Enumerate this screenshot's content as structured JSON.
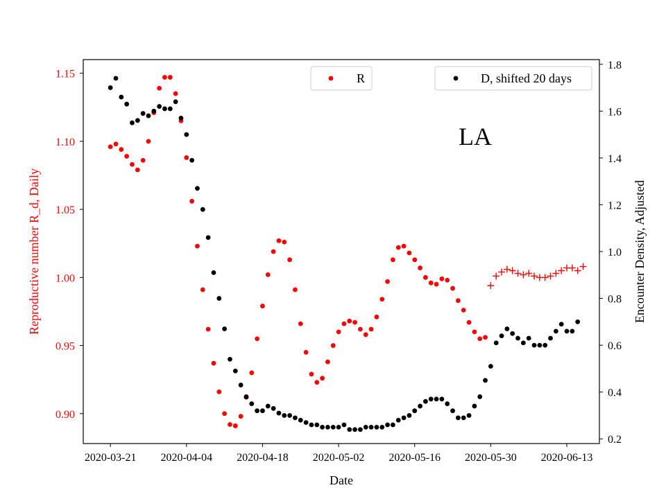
{
  "chart_data": {
    "type": "scatter",
    "title": "LA",
    "xlabel": "Date",
    "ylabel_left": "Reproductive number R_d, Daily",
    "ylabel_right": "Encounter Density, Adjusted",
    "xlim": [
      "2020-03-16",
      "2020-06-19"
    ],
    "ylim_left": [
      0.878,
      1.16
    ],
    "ylim_right": [
      0.18,
      1.82
    ],
    "x_ticks": [
      "2020-03-21",
      "2020-04-04",
      "2020-04-18",
      "2020-05-02",
      "2020-05-16",
      "2020-05-30",
      "2020-06-13"
    ],
    "y_ticks_left": [
      "0.90",
      "0.95",
      "1.00",
      "1.05",
      "1.10",
      "1.15"
    ],
    "y_ticks_right": [
      "0.2",
      "0.4",
      "0.6",
      "0.8",
      "1.0",
      "1.2",
      "1.4",
      "1.6",
      "1.8"
    ],
    "grid": false,
    "legend": [
      {
        "label": "R",
        "color": "#ff0000",
        "placement": "top-center"
      },
      {
        "label": "D, shifted 20 days",
        "color": "#000000",
        "placement": "top-right"
      }
    ],
    "series": [
      {
        "name": "R",
        "axis": "left",
        "marker": "dot",
        "color": "#ff0000",
        "start_date": "2020-03-21",
        "values": [
          1.096,
          1.098,
          1.094,
          1.089,
          1.083,
          1.079,
          1.086,
          1.1,
          1.121,
          1.139,
          1.147,
          1.147,
          1.135,
          1.115,
          1.088,
          1.056,
          1.023,
          0.991,
          0.962,
          0.937,
          0.916,
          0.9,
          0.892,
          0.891,
          0.898,
          0.912,
          0.93,
          0.955,
          0.979,
          1.002,
          1.019,
          1.027,
          1.026,
          1.013,
          0.991,
          0.966,
          0.945,
          0.929,
          0.923,
          0.926,
          0.938,
          0.95,
          0.96,
          0.966,
          0.968,
          0.967,
          0.962,
          0.958,
          0.962,
          0.971,
          0.984,
          0.997,
          1.013,
          1.022,
          1.023,
          1.018,
          1.013,
          1.007,
          1.0,
          0.996,
          0.995,
          0.999,
          0.998,
          0.992,
          0.983,
          0.976,
          0.967,
          0.96,
          0.955,
          0.956
        ]
      },
      {
        "name": "R",
        "axis": "left",
        "marker": "plus",
        "color": "#ff0000",
        "start_date": "2020-05-30",
        "values": [
          0.994,
          1.001,
          1.004,
          1.006,
          1.005,
          1.003,
          1.002,
          1.003,
          1.001,
          1.0,
          1.0,
          1.001,
          1.003,
          1.005,
          1.007,
          1.007,
          1.005,
          1.008
        ]
      },
      {
        "name": "D, shifted 20 days",
        "axis": "right",
        "marker": "dot",
        "color": "#000000",
        "start_date": "2020-03-21",
        "values": [
          1.7,
          1.74,
          1.66,
          1.63,
          1.55,
          1.56,
          1.59,
          1.58,
          1.6,
          1.62,
          1.61,
          1.61,
          1.64,
          1.57,
          1.5,
          1.39,
          1.27,
          1.18,
          1.06,
          0.91,
          0.8,
          0.67,
          0.54,
          0.49,
          0.43,
          0.38,
          0.35,
          0.32,
          0.32,
          0.34,
          0.33,
          0.31,
          0.3,
          0.3,
          0.29,
          0.28,
          0.27,
          0.26,
          0.26,
          0.25,
          0.25,
          0.25,
          0.25,
          0.26,
          0.24,
          0.24,
          0.24,
          0.25,
          0.25,
          0.25,
          0.25,
          0.26,
          0.26,
          0.28,
          0.29,
          0.3,
          0.32,
          0.34,
          0.36,
          0.37,
          0.37,
          0.37,
          0.35,
          0.32,
          0.29,
          0.29,
          0.3,
          0.34,
          0.38,
          0.45,
          0.51,
          0.61,
          0.64,
          0.67,
          0.65,
          0.63,
          0.61,
          0.63,
          0.6,
          0.6,
          0.6,
          0.63,
          0.66,
          0.69,
          0.66,
          0.66,
          0.7
        ]
      }
    ]
  }
}
